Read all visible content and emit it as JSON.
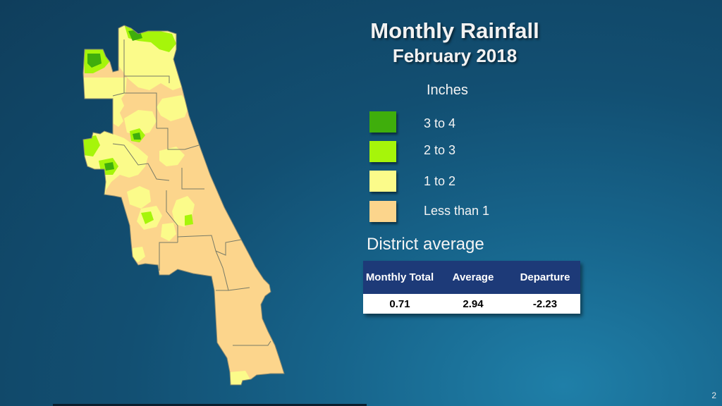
{
  "title": "Monthly Rainfall",
  "subtitle": "February 2018",
  "legend": {
    "units": "Inches",
    "items": [
      {
        "label": "3 to 4",
        "color": "#3fae0c"
      },
      {
        "label": "2 to 3",
        "color": "#a6f50a"
      },
      {
        "label": "1 to 2",
        "color": "#fbfb8a"
      },
      {
        "label": "Less than 1",
        "color": "#fcd58c"
      }
    ]
  },
  "district_average": {
    "heading": "District average",
    "columns": [
      "Monthly Total",
      "Average",
      "Departure"
    ],
    "values": [
      "0.71",
      "2.94",
      "-2.23"
    ]
  },
  "slide_number": "2"
}
